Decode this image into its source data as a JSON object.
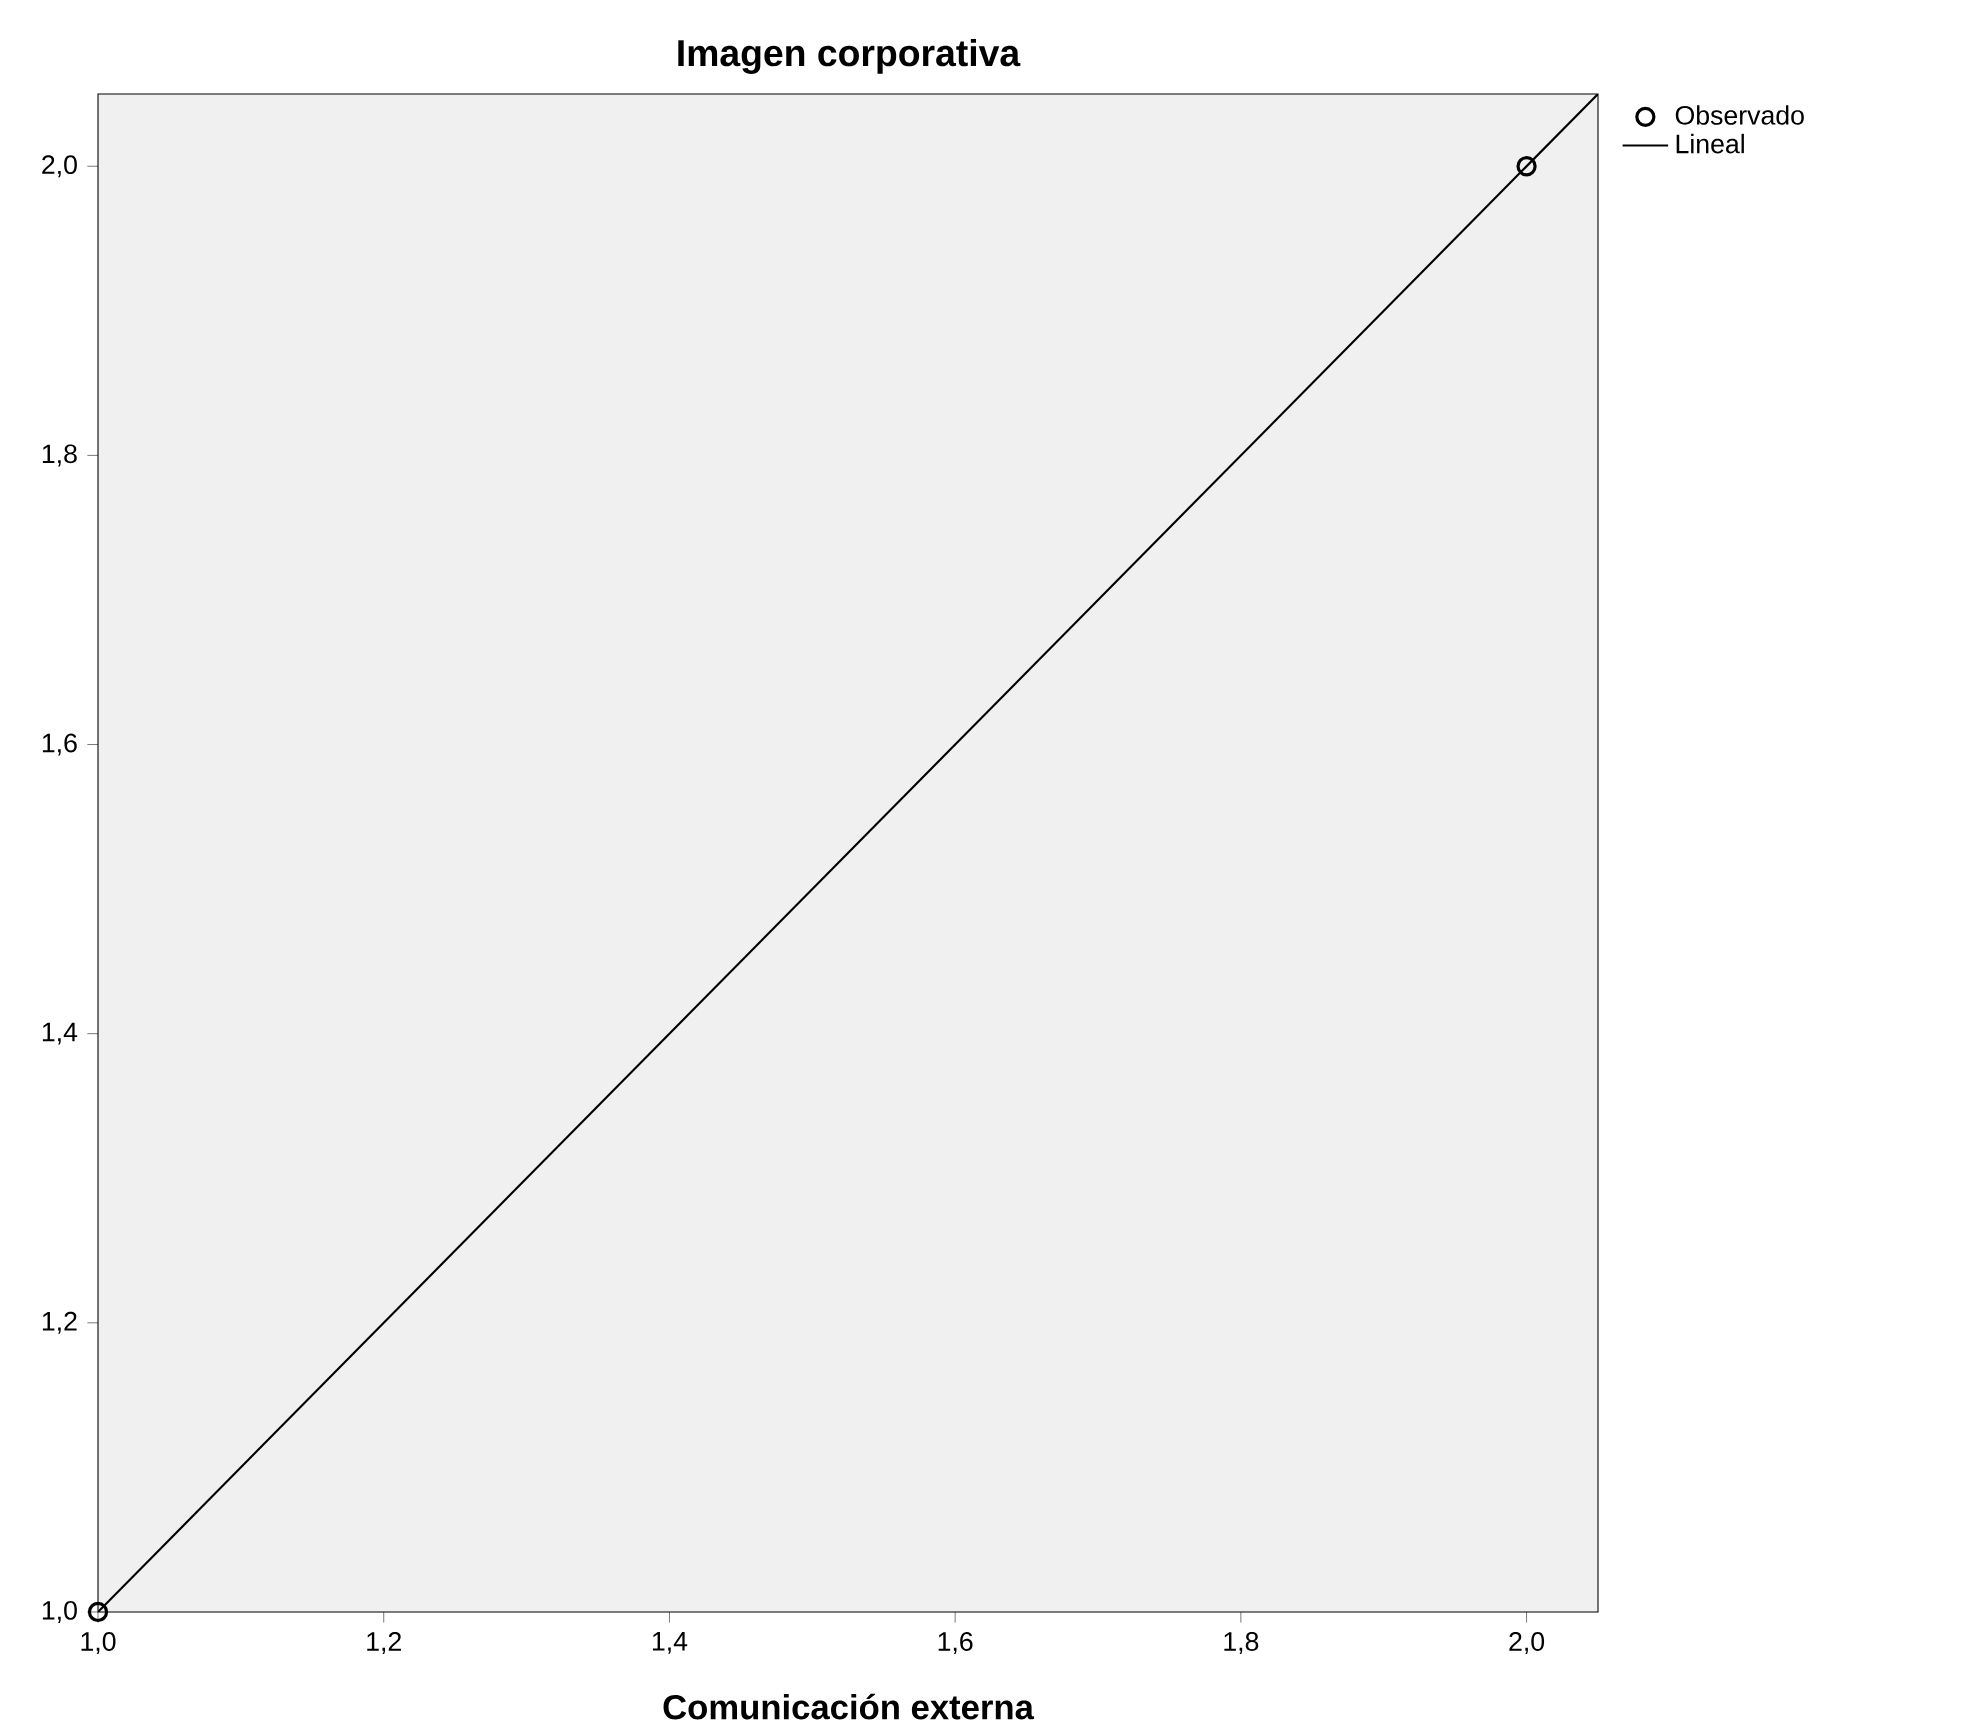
{
  "chart_data": {
    "type": "scatter",
    "title": "Imagen corporativa",
    "xlabel": "Comunicación externa",
    "xlim": [
      1,
      2.05
    ],
    "ylim": [
      1,
      2.05
    ],
    "xticks": [
      {
        "value": 1,
        "label": "1,0"
      },
      {
        "value": 1.2,
        "label": "1,2"
      },
      {
        "value": 1.4,
        "label": "1,4"
      },
      {
        "value": 1.6,
        "label": "1,6"
      },
      {
        "value": 1.8,
        "label": "1,8"
      },
      {
        "value": 2,
        "label": "2,0"
      }
    ],
    "yticks": [
      {
        "value": 1,
        "label": "1,0"
      },
      {
        "value": 1.2,
        "label": "1,2"
      },
      {
        "value": 1.4,
        "label": "1,4"
      },
      {
        "value": 1.6,
        "label": "1,6"
      },
      {
        "value": 1.8,
        "label": "1,8"
      },
      {
        "value": 2,
        "label": "2,0"
      }
    ],
    "series": [
      {
        "name": "Observado",
        "color": "#000000",
        "marker": "circle",
        "x": [
          1,
          2
        ],
        "values": [
          1,
          2
        ]
      },
      {
        "name": "Lineal",
        "type": "line",
        "color": "#000000",
        "marker": "none",
        "line_style": "solid",
        "x": [
          1,
          2.05
        ],
        "values": [
          1,
          2.05
        ]
      }
    ],
    "grid": false,
    "legend": "top right"
  }
}
